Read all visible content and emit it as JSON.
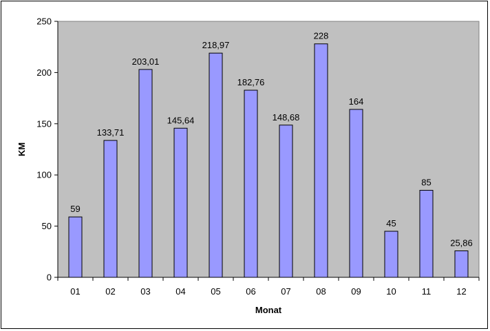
{
  "chart_data": {
    "type": "bar",
    "categories": [
      "01",
      "02",
      "03",
      "04",
      "05",
      "06",
      "07",
      "08",
      "09",
      "10",
      "11",
      "12"
    ],
    "values": [
      59,
      133.71,
      203.01,
      145.64,
      218.97,
      182.76,
      148.68,
      228,
      164,
      45,
      85,
      25.86
    ],
    "data_labels": [
      "59",
      "133,71",
      "203,01",
      "145,64",
      "218,97",
      "182,76",
      "148,68",
      "228",
      "164",
      "45",
      "85",
      "25,86"
    ],
    "title": "",
    "xlabel": "Monat",
    "ylabel": "KM",
    "ylim": [
      0,
      250
    ],
    "yticks": [
      "0",
      "50",
      "100",
      "150",
      "200",
      "250"
    ],
    "grid": false,
    "legend": "none",
    "colors": {
      "bar_fill": "#9999ff",
      "bar_stroke": "#000000",
      "plot_background": "#c0c0c0"
    }
  }
}
